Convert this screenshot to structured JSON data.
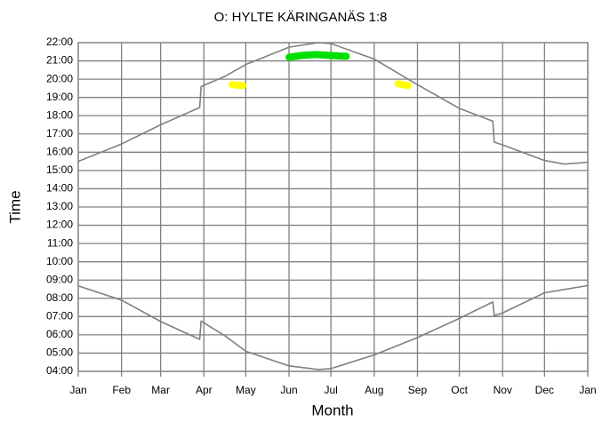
{
  "chart_data": {
    "type": "line",
    "title": "O: HYLTE KÄRINGANÄS 1:8",
    "xlabel": "Month",
    "ylabel": "Time",
    "xlim": [
      0,
      365
    ],
    "ylim": [
      4,
      22
    ],
    "grid": true,
    "xticks": [
      {
        "value": 0,
        "label": "Jan"
      },
      {
        "value": 31,
        "label": "Feb"
      },
      {
        "value": 59,
        "label": "Mar"
      },
      {
        "value": 90,
        "label": "Apr"
      },
      {
        "value": 120,
        "label": "May"
      },
      {
        "value": 151,
        "label": "Jun"
      },
      {
        "value": 181,
        "label": "Jul"
      },
      {
        "value": 212,
        "label": "Aug"
      },
      {
        "value": 243,
        "label": "Sep"
      },
      {
        "value": 273,
        "label": "Oct"
      },
      {
        "value": 304,
        "label": "Nov"
      },
      {
        "value": 334,
        "label": "Dec"
      },
      {
        "value": 365,
        "label": "Jan"
      }
    ],
    "yticks": [
      {
        "value": 4,
        "label": "04:00"
      },
      {
        "value": 5,
        "label": "05:00"
      },
      {
        "value": 6,
        "label": "06:00"
      },
      {
        "value": 7,
        "label": "07:00"
      },
      {
        "value": 8,
        "label": "08:00"
      },
      {
        "value": 9,
        "label": "09:00"
      },
      {
        "value": 10,
        "label": "10:00"
      },
      {
        "value": 11,
        "label": "11:00"
      },
      {
        "value": 12,
        "label": "12:00"
      },
      {
        "value": 13,
        "label": "13:00"
      },
      {
        "value": 14,
        "label": "14:00"
      },
      {
        "value": 15,
        "label": "15:00"
      },
      {
        "value": 16,
        "label": "16:00"
      },
      {
        "value": 17,
        "label": "17:00"
      },
      {
        "value": 18,
        "label": "18:00"
      },
      {
        "value": 19,
        "label": "19:00"
      },
      {
        "value": 20,
        "label": "20:00"
      },
      {
        "value": 21,
        "label": "21:00"
      },
      {
        "value": 22,
        "label": "22:00"
      }
    ],
    "series": [
      {
        "color": "#808080",
        "width": 1.6,
        "x": [
          0,
          31,
          59,
          87,
          88,
          105,
          120,
          151,
          172,
          181,
          212,
          243,
          273,
          297,
          298,
          304,
          334,
          348,
          365
        ],
        "values": [
          15.5,
          16.45,
          17.5,
          18.45,
          19.6,
          20.15,
          20.8,
          21.75,
          22.0,
          21.95,
          21.1,
          19.7,
          18.4,
          17.7,
          16.55,
          16.4,
          15.55,
          15.35,
          15.45
        ]
      },
      {
        "color": "#808080",
        "width": 1.6,
        "x": [
          0,
          31,
          59,
          87,
          88,
          105,
          120,
          151,
          172,
          181,
          212,
          243,
          273,
          297,
          298,
          304,
          334,
          365
        ],
        "values": [
          8.68,
          7.9,
          6.73,
          5.75,
          6.75,
          5.95,
          5.1,
          4.3,
          4.1,
          4.15,
          4.9,
          5.85,
          6.9,
          7.8,
          7.05,
          7.2,
          8.3,
          8.7
        ]
      },
      {
        "color": "#ffff00",
        "width": 8,
        "x": [
          110,
          118
        ],
        "values": [
          19.7,
          19.65
        ]
      },
      {
        "color": "#ffff00",
        "width": 8,
        "x": [
          229,
          236
        ],
        "values": [
          19.75,
          19.65
        ]
      },
      {
        "color": "#00e000",
        "width": 8,
        "x": [
          151,
          160,
          170,
          180,
          192
        ],
        "values": [
          21.2,
          21.3,
          21.35,
          21.3,
          21.25
        ]
      }
    ]
  }
}
